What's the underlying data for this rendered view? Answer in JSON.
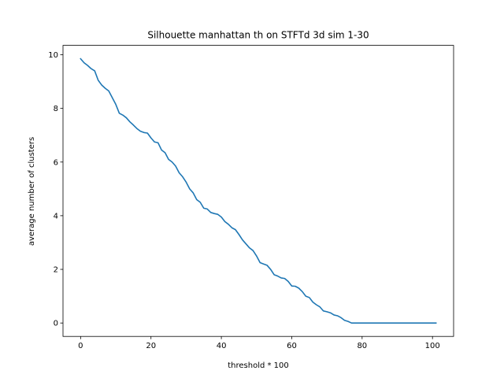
{
  "chart_data": {
    "type": "line",
    "title": "Silhouette manhattan th on STFTd 3d sim 1-30",
    "xlabel": "threshold * 100",
    "ylabel": "average number of clusters",
    "xlim": [
      -5,
      106
    ],
    "ylim": [
      -0.5,
      10.35
    ],
    "xticks": [
      0,
      20,
      40,
      60,
      80,
      100
    ],
    "yticks": [
      0,
      2,
      4,
      6,
      8,
      10
    ],
    "grid": false,
    "line_color": "#1f77b4",
    "series": [
      {
        "x": [
          0,
          1,
          2,
          3,
          4,
          5,
          6,
          7,
          8,
          9,
          10,
          11,
          12,
          13,
          14,
          15,
          16,
          17,
          18,
          19,
          20,
          21,
          22,
          23,
          24,
          25,
          26,
          27,
          28,
          29,
          30,
          31,
          32,
          33,
          34,
          35,
          36,
          37,
          38,
          39,
          40,
          41,
          42,
          43,
          44,
          45,
          46,
          47,
          48,
          49,
          50,
          51,
          52,
          53,
          54,
          55,
          56,
          57,
          58,
          59,
          60,
          61,
          62,
          63,
          64,
          65,
          66,
          67,
          68,
          69,
          70,
          71,
          72,
          73,
          74,
          75,
          76,
          77,
          78,
          79,
          80,
          81,
          82,
          83,
          84,
          85,
          86,
          87,
          88,
          89,
          90,
          91,
          92,
          93,
          94,
          95,
          96,
          97,
          98,
          99,
          100,
          101
        ],
        "y": [
          9.85,
          9.7,
          9.6,
          9.48,
          9.4,
          9.05,
          8.87,
          8.75,
          8.65,
          8.4,
          8.15,
          7.82,
          7.75,
          7.65,
          7.5,
          7.38,
          7.25,
          7.15,
          7.1,
          7.08,
          6.9,
          6.75,
          6.72,
          6.45,
          6.35,
          6.1,
          6.0,
          5.85,
          5.6,
          5.45,
          5.25,
          5.0,
          4.85,
          4.6,
          4.5,
          4.28,
          4.25,
          4.12,
          4.08,
          4.05,
          3.95,
          3.78,
          3.68,
          3.55,
          3.48,
          3.3,
          3.1,
          2.95,
          2.8,
          2.7,
          2.5,
          2.25,
          2.2,
          2.15,
          2.0,
          1.8,
          1.75,
          1.68,
          1.66,
          1.55,
          1.38,
          1.37,
          1.3,
          1.17,
          1.0,
          0.95,
          0.78,
          0.68,
          0.6,
          0.45,
          0.42,
          0.38,
          0.3,
          0.27,
          0.2,
          0.1,
          0.06,
          0.0,
          0.0,
          0.0,
          0.0,
          0.0,
          0.0,
          0.0,
          0.0,
          0.0,
          0.0,
          0.0,
          0.0,
          0.0,
          0.0,
          0.0,
          0.0,
          0.0,
          0.0,
          0.0,
          0.0,
          0.0,
          0.0,
          0.0,
          0.0,
          0.0
        ]
      }
    ]
  }
}
